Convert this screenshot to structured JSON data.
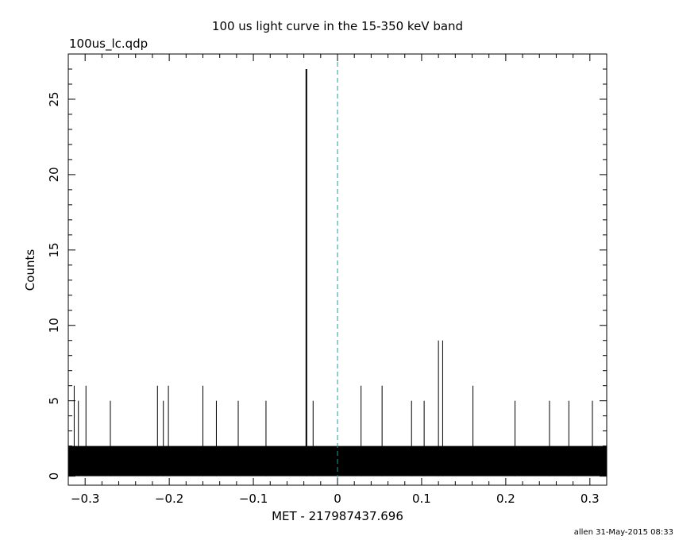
{
  "chart_data": {
    "type": "bar",
    "title": "100 us light curve in the 15-350 keV band",
    "file_label": "100us_lc.qdp",
    "xlabel": "MET - 217987437.696",
    "ylabel": "Counts",
    "footer": "allen 31-May-2015 08:33",
    "xlim": [
      -0.32,
      0.32
    ],
    "ylim": [
      -0.6,
      28
    ],
    "x_ticks": [
      -0.3,
      -0.2,
      -0.1,
      0,
      0.1,
      0.2,
      0.3
    ],
    "x_tick_labels": [
      "−0.3",
      "−0.2",
      "−0.1",
      "0",
      "0.1",
      "0.2",
      "0.3"
    ],
    "y_ticks": [
      0,
      5,
      10,
      15,
      20,
      25
    ],
    "y_tick_labels": [
      "0",
      "5",
      "10",
      "15",
      "20",
      "25"
    ],
    "trigger_time": 0,
    "bin_width": 0.0001,
    "baseline_counts": 2,
    "spikes": [
      {
        "x": -0.037,
        "y": 27
      },
      {
        "x": 0.12,
        "y": 9
      },
      {
        "x": 0.125,
        "y": 9
      },
      {
        "x": -0.313,
        "y": 6
      },
      {
        "x": -0.308,
        "y": 5
      },
      {
        "x": -0.299,
        "y": 6
      },
      {
        "x": -0.27,
        "y": 5
      },
      {
        "x": -0.214,
        "y": 6
      },
      {
        "x": -0.207,
        "y": 5
      },
      {
        "x": -0.201,
        "y": 6
      },
      {
        "x": -0.16,
        "y": 6
      },
      {
        "x": -0.144,
        "y": 5
      },
      {
        "x": -0.118,
        "y": 5
      },
      {
        "x": -0.085,
        "y": 5
      },
      {
        "x": -0.029,
        "y": 5
      },
      {
        "x": 0.028,
        "y": 6
      },
      {
        "x": 0.053,
        "y": 6
      },
      {
        "x": 0.088,
        "y": 5
      },
      {
        "x": 0.103,
        "y": 5
      },
      {
        "x": 0.161,
        "y": 6
      },
      {
        "x": 0.211,
        "y": 5
      },
      {
        "x": 0.252,
        "y": 5
      },
      {
        "x": 0.275,
        "y": 5
      },
      {
        "x": 0.303,
        "y": 5
      }
    ],
    "grid": false,
    "colors": {
      "data": "#000000",
      "trigger_line": "#1a9ea8",
      "background": "#ffffff"
    }
  }
}
